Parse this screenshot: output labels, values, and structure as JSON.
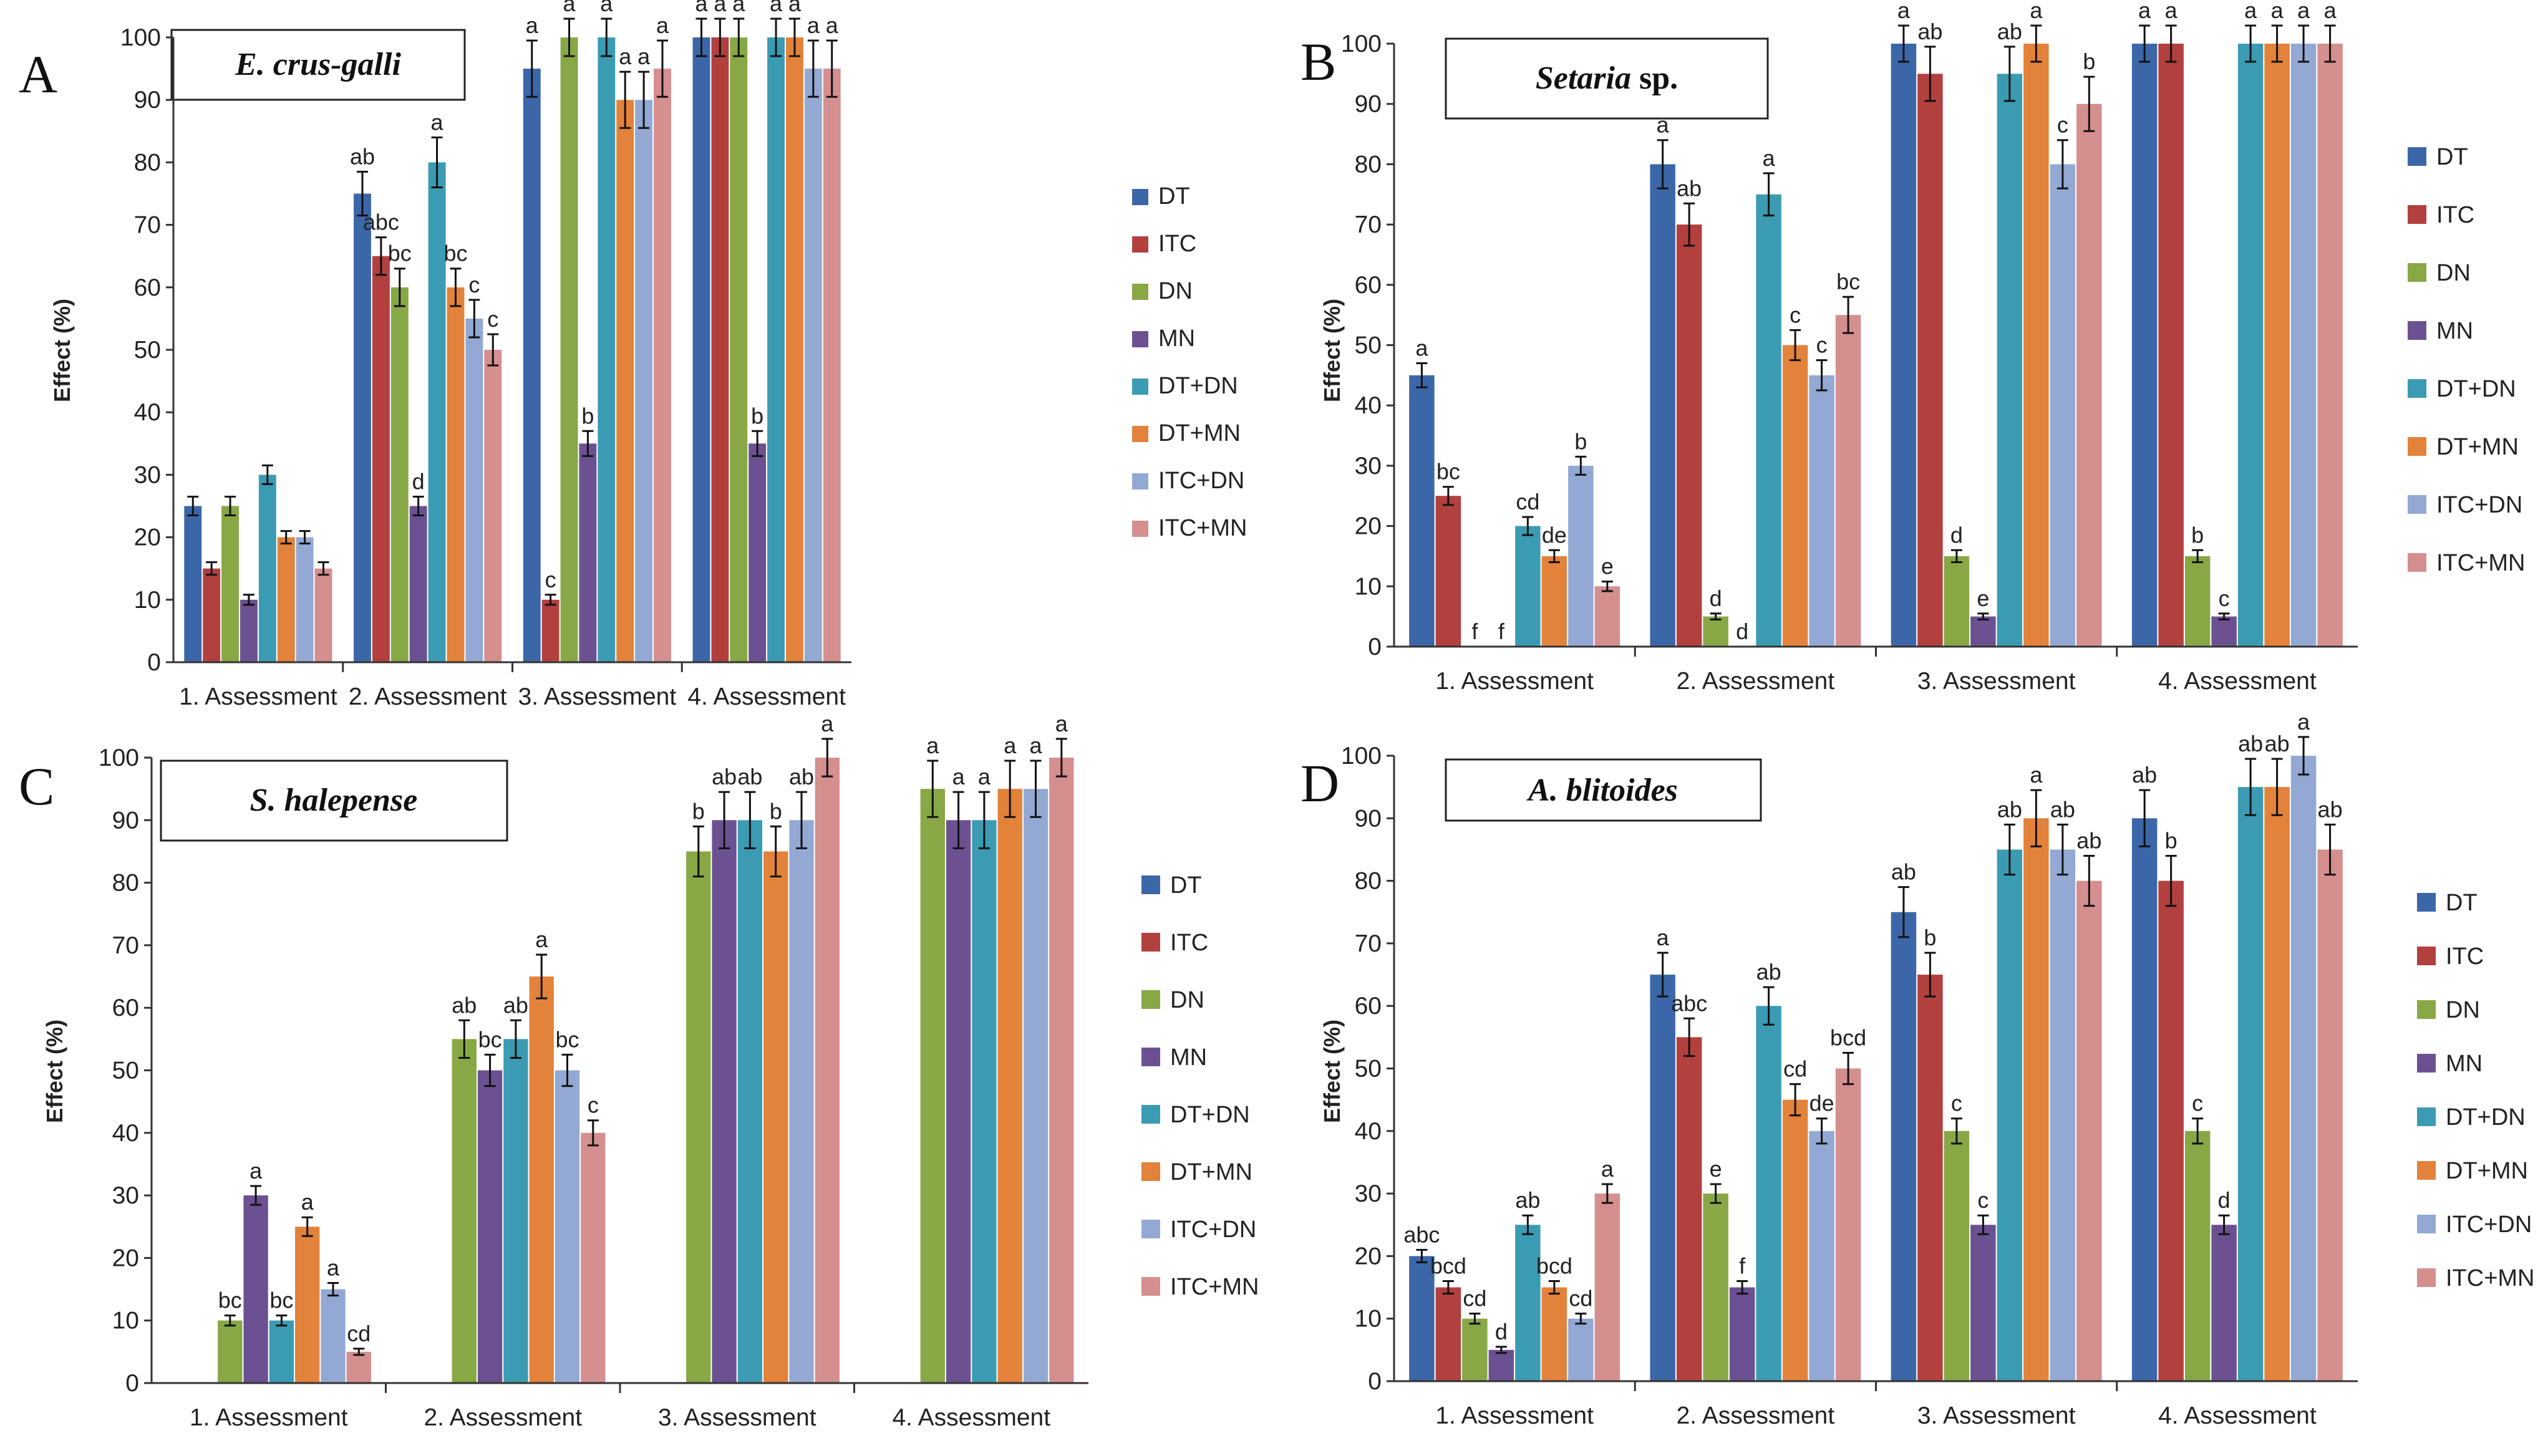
{
  "series_names": [
    "DT",
    "ITC",
    "DN",
    "MN",
    "DT+DN",
    "DT+MN",
    "ITC+DN",
    "ITC+MN"
  ],
  "series_colors": [
    "#3B67A8",
    "#B2403F",
    "#87A845",
    "#6B5191",
    "#3B9BB3",
    "#E3823A",
    "#93A9D4",
    "#D48F8E"
  ],
  "chart_data": [
    {
      "panel": "A",
      "type": "bar",
      "title": "E. crus-galli",
      "title_italic": "E. crus-galli",
      "title_plain": "",
      "ylabel": "Effect (%)",
      "xlabel": "",
      "ylim": [
        0,
        100
      ],
      "yticks": [
        0,
        10,
        20,
        30,
        40,
        50,
        60,
        70,
        80,
        90,
        100
      ],
      "categories": [
        "1. Assessment",
        "2. Assessment",
        "3. Assessment",
        "4. Assessment"
      ],
      "legend_position": "right",
      "series": [
        {
          "name": "DT",
          "values": [
            25,
            75,
            95,
            100
          ],
          "errors": [
            1.5,
            3.5,
            4.5,
            3
          ],
          "labels": [
            "",
            "ab",
            "a",
            "a"
          ]
        },
        {
          "name": "ITC",
          "values": [
            15,
            65,
            10,
            100
          ],
          "errors": [
            1,
            3,
            0.8,
            3
          ],
          "labels": [
            "",
            "abc",
            "c",
            "a"
          ]
        },
        {
          "name": "DN",
          "values": [
            25,
            60,
            100,
            100
          ],
          "errors": [
            1.5,
            3,
            3,
            3
          ],
          "labels": [
            "",
            "bc",
            "a",
            "a"
          ]
        },
        {
          "name": "MN",
          "values": [
            10,
            25,
            35,
            35
          ],
          "errors": [
            0.8,
            1.5,
            2,
            2
          ],
          "labels": [
            "",
            "d",
            "b",
            "b"
          ]
        },
        {
          "name": "DT+DN",
          "values": [
            30,
            80,
            100,
            100
          ],
          "errors": [
            1.5,
            4,
            3,
            3
          ],
          "labels": [
            "",
            "a",
            "a",
            "a"
          ]
        },
        {
          "name": "DT+MN",
          "values": [
            20,
            60,
            90,
            100
          ],
          "errors": [
            1,
            3,
            4.5,
            3
          ],
          "labels": [
            "",
            "bc",
            "a",
            "a"
          ]
        },
        {
          "name": "ITC+DN",
          "values": [
            20,
            55,
            90,
            95
          ],
          "errors": [
            1,
            3,
            4.5,
            4.5
          ],
          "labels": [
            "",
            "c",
            "a",
            "a"
          ]
        },
        {
          "name": "ITC+MN",
          "values": [
            15,
            50,
            95,
            95
          ],
          "errors": [
            1,
            2.5,
            4.5,
            4.5
          ],
          "labels": [
            "",
            "c",
            "a",
            "a"
          ]
        }
      ]
    },
    {
      "panel": "B",
      "type": "bar",
      "title": "Setaria sp.",
      "title_italic": "Setaria",
      "title_plain": " sp.",
      "ylabel": "Effect (%)",
      "xlabel": "",
      "ylim": [
        0,
        100
      ],
      "yticks": [
        0,
        10,
        20,
        30,
        40,
        50,
        60,
        70,
        80,
        90,
        100
      ],
      "categories": [
        "1. Assessment",
        "2. Assessment",
        "3. Assessment",
        "4. Assessment"
      ],
      "legend_position": "right",
      "series": [
        {
          "name": "DT",
          "values": [
            45,
            80,
            100,
            100
          ],
          "errors": [
            2,
            4,
            3,
            3
          ],
          "labels": [
            "a",
            "a",
            "a",
            "a"
          ]
        },
        {
          "name": "ITC",
          "values": [
            25,
            70,
            95,
            100
          ],
          "errors": [
            1.5,
            3.5,
            4.5,
            3
          ],
          "labels": [
            "bc",
            "ab",
            "ab",
            "a"
          ]
        },
        {
          "name": "DN",
          "values": [
            0,
            5,
            15,
            15
          ],
          "errors": [
            0,
            0.5,
            1,
            1
          ],
          "labels": [
            "f",
            "d",
            "d",
            "b"
          ]
        },
        {
          "name": "MN",
          "values": [
            0,
            0,
            5,
            5
          ],
          "errors": [
            0,
            0,
            0.5,
            0.5
          ],
          "labels": [
            "f",
            "d",
            "e",
            "c"
          ]
        },
        {
          "name": "DT+DN",
          "values": [
            20,
            75,
            95,
            100
          ],
          "errors": [
            1.5,
            3.5,
            4.5,
            3
          ],
          "labels": [
            "cd",
            "a",
            "ab",
            "a"
          ]
        },
        {
          "name": "DT+MN",
          "values": [
            15,
            50,
            100,
            100
          ],
          "errors": [
            1,
            2.5,
            3,
            3
          ],
          "labels": [
            "de",
            "c",
            "a",
            "a"
          ]
        },
        {
          "name": "ITC+DN",
          "values": [
            30,
            45,
            80,
            100
          ],
          "errors": [
            1.5,
            2.5,
            4,
            3
          ],
          "labels": [
            "b",
            "c",
            "c",
            "a"
          ]
        },
        {
          "name": "ITC+MN",
          "values": [
            10,
            55,
            90,
            100
          ],
          "errors": [
            0.8,
            3,
            4.5,
            3
          ],
          "labels": [
            "e",
            "bc",
            "b",
            "a"
          ]
        }
      ]
    },
    {
      "panel": "C",
      "type": "bar",
      "title": "S. halepense",
      "title_italic": "S. halepense",
      "title_plain": "",
      "ylabel": "Effect (%)",
      "xlabel": "",
      "ylim": [
        0,
        100
      ],
      "yticks": [
        0,
        10,
        20,
        30,
        40,
        50,
        60,
        70,
        80,
        90,
        100
      ],
      "categories": [
        "1. Assessment",
        "2. Assessment",
        "3. Assessment",
        "4. Assessment"
      ],
      "legend_position": "right",
      "series": [
        {
          "name": "DT",
          "values": [
            0,
            0,
            0,
            0
          ],
          "errors": [
            0,
            0,
            0,
            0
          ],
          "labels": [
            "",
            "",
            "",
            ""
          ]
        },
        {
          "name": "ITC",
          "values": [
            0,
            0,
            0,
            0
          ],
          "errors": [
            0,
            0,
            0,
            0
          ],
          "labels": [
            "",
            "",
            "",
            ""
          ]
        },
        {
          "name": "DN",
          "values": [
            10,
            55,
            85,
            95
          ],
          "errors": [
            0.8,
            3,
            4,
            4.5
          ],
          "labels": [
            "bc",
            "ab",
            "b",
            "a"
          ]
        },
        {
          "name": "MN",
          "values": [
            30,
            50,
            90,
            90
          ],
          "errors": [
            1.5,
            2.5,
            4.5,
            4.5
          ],
          "labels": [
            "a",
            "bc",
            "ab",
            "a"
          ]
        },
        {
          "name": "DT+DN",
          "values": [
            10,
            55,
            90,
            90
          ],
          "errors": [
            0.8,
            3,
            4.5,
            4.5
          ],
          "labels": [
            "bc",
            "ab",
            "ab",
            "a"
          ]
        },
        {
          "name": "DT+MN",
          "values": [
            25,
            65,
            85,
            95
          ],
          "errors": [
            1.5,
            3.5,
            4,
            4.5
          ],
          "labels": [
            "a",
            "a",
            "b",
            "a"
          ]
        },
        {
          "name": "ITC+DN",
          "values": [
            15,
            50,
            90,
            95
          ],
          "errors": [
            1,
            2.5,
            4.5,
            4.5
          ],
          "labels": [
            "a",
            "bc",
            "ab",
            "a"
          ]
        },
        {
          "name": "ITC+MN",
          "values": [
            5,
            40,
            100,
            100
          ],
          "errors": [
            0.5,
            2,
            3,
            3
          ],
          "labels": [
            "cd",
            "c",
            "a",
            "a"
          ]
        }
      ]
    },
    {
      "panel": "D",
      "type": "bar",
      "title": "A. blitoides",
      "title_italic": "A. blitoides",
      "title_plain": "",
      "ylabel": "Effect (%)",
      "xlabel": "",
      "ylim": [
        0,
        100
      ],
      "yticks": [
        0,
        10,
        20,
        30,
        40,
        50,
        60,
        70,
        80,
        90,
        100
      ],
      "categories": [
        "1. Assessment",
        "2. Assessment",
        "3. Assessment",
        "4. Assessment"
      ],
      "legend_position": "right",
      "series": [
        {
          "name": "DT",
          "values": [
            20,
            65,
            75,
            90
          ],
          "errors": [
            1,
            3.5,
            4,
            4.5
          ],
          "labels": [
            "abc",
            "a",
            "ab",
            "ab"
          ]
        },
        {
          "name": "ITC",
          "values": [
            15,
            55,
            65,
            80
          ],
          "errors": [
            1,
            3,
            3.5,
            4
          ],
          "labels": [
            "bcd",
            "abc",
            "b",
            "b"
          ]
        },
        {
          "name": "DN",
          "values": [
            10,
            30,
            40,
            40
          ],
          "errors": [
            0.8,
            1.5,
            2,
            2
          ],
          "labels": [
            "cd",
            "e",
            "c",
            "c"
          ]
        },
        {
          "name": "MN",
          "values": [
            5,
            15,
            25,
            25
          ],
          "errors": [
            0.5,
            1,
            1.5,
            1.5
          ],
          "labels": [
            "d",
            "f",
            "c",
            "d"
          ]
        },
        {
          "name": "DT+DN",
          "values": [
            25,
            60,
            85,
            95
          ],
          "errors": [
            1.5,
            3,
            4,
            4.5
          ],
          "labels": [
            "ab",
            "ab",
            "ab",
            "ab"
          ]
        },
        {
          "name": "DT+MN",
          "values": [
            15,
            45,
            90,
            95
          ],
          "errors": [
            1,
            2.5,
            4.5,
            4.5
          ],
          "labels": [
            "bcd",
            "cd",
            "a",
            "ab"
          ]
        },
        {
          "name": "ITC+DN",
          "values": [
            10,
            40,
            85,
            100
          ],
          "errors": [
            0.8,
            2,
            4,
            3
          ],
          "labels": [
            "cd",
            "de",
            "ab",
            "a"
          ]
        },
        {
          "name": "ITC+MN",
          "values": [
            30,
            50,
            80,
            85
          ],
          "errors": [
            1.5,
            2.5,
            4,
            4
          ],
          "labels": [
            "a",
            "bcd",
            "ab",
            "ab"
          ]
        }
      ]
    }
  ]
}
